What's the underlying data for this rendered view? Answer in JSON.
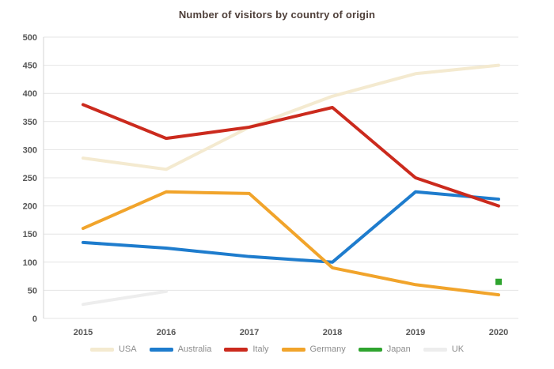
{
  "chart_data": {
    "type": "line",
    "title": "Number of visitors by country of origin",
    "xlabel": "",
    "ylabel": "",
    "categories": [
      "2015",
      "2016",
      "2017",
      "2018",
      "2019",
      "2020"
    ],
    "ylim": [
      0,
      500
    ],
    "ytick_step": 50,
    "grid": true,
    "legend_position": "bottom",
    "series": [
      {
        "name": "USA",
        "color": "#f4ead0",
        "values": [
          285,
          265,
          340,
          395,
          435,
          450
        ]
      },
      {
        "name": "Australia",
        "color": "#1e7ccd",
        "values": [
          135,
          125,
          110,
          100,
          225,
          212
        ]
      },
      {
        "name": "Italy",
        "color": "#cb2a1d",
        "values": [
          380,
          320,
          340,
          375,
          250,
          200
        ]
      },
      {
        "name": "Germany",
        "color": "#f1a42b",
        "values": [
          160,
          225,
          222,
          90,
          60,
          42
        ]
      },
      {
        "name": "Japan",
        "color": "#2fa42f",
        "values": [
          null,
          null,
          null,
          null,
          null,
          65
        ]
      },
      {
        "name": "UK",
        "color": "#ededed",
        "values": [
          25,
          48,
          null,
          null,
          null,
          null
        ]
      }
    ],
    "colors": {
      "grid": "#e4e4e4",
      "axis": "#d4d4d4",
      "tick_label": "#565656",
      "title": "#4e3f39",
      "legend_label": "#8d8d8d"
    }
  }
}
